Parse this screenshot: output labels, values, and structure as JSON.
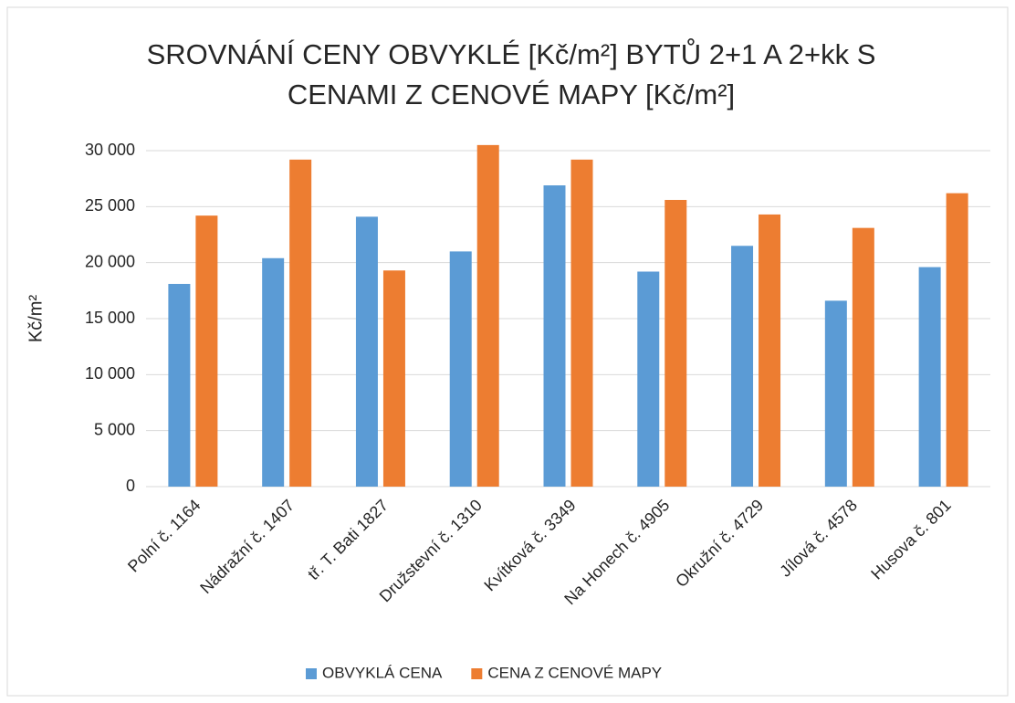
{
  "chart_data": {
    "type": "bar",
    "title": "SROVNÁNÍ CENY OBVYKLÉ [Kč/m²] BYTŮ 2+1 A 2+kk S CENAMI Z CENOVÉ MAPY [Kč/m²]",
    "y_label": "Kč/m²",
    "categories": [
      "Polní č. 1164",
      "Nádražní č. 1407",
      "tř. T. Bati 1827",
      "Družstevní č. 1310",
      "Kvítková č. 3349",
      "Na Honech č. 4905",
      "Okružní č. 4729",
      "Jílová č. 4578",
      "Husova č. 801"
    ],
    "series": [
      {
        "name": "OBVYKLÁ CENA",
        "color": "#5b9bd5",
        "values": [
          18100,
          20400,
          24100,
          21000,
          26900,
          19200,
          21500,
          16600,
          19600
        ]
      },
      {
        "name": "CENA Z CENOVÉ MAPY",
        "color": "#ed7d31",
        "values": [
          24200,
          29200,
          19300,
          30500,
          29200,
          25600,
          24300,
          23100,
          26200
        ]
      }
    ],
    "ylim": [
      0,
      30000
    ],
    "yticks": [
      0,
      {
        "value": 5000,
        "label": "5 000"
      },
      {
        "value": 10000,
        "label": "10 000"
      },
      {
        "value": 15000,
        "label": "15 000"
      },
      {
        "value": 20000,
        "label": "20 000"
      },
      {
        "value": 25000,
        "label": "25 000"
      },
      {
        "value": 30000,
        "label": "30 000"
      }
    ],
    "grid": true,
    "legend": "bottom"
  }
}
